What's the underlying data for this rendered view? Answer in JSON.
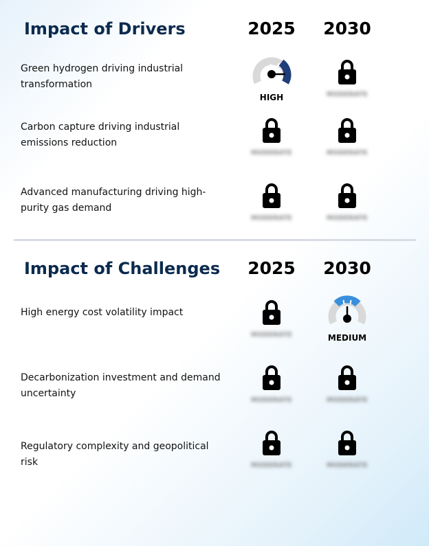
{
  "drivers": {
    "title": "Impact of Drivers",
    "year_a": "2025",
    "year_b": "2030",
    "rows": [
      {
        "label": "Green hydrogen driving industrial transformation",
        "y2025": {
          "kind": "gauge",
          "level": "HIGH",
          "color": "#1f3e7a"
        },
        "y2030": {
          "kind": "locked",
          "hidden_text": "MODERATE"
        }
      },
      {
        "label": "Carbon capture driving industrial emissions reduction",
        "y2025": {
          "kind": "locked",
          "hidden_text": "MODERATE"
        },
        "y2030": {
          "kind": "locked",
          "hidden_text": "MODERATE"
        }
      },
      {
        "label": "Advanced manufacturing driving high-purity gas demand",
        "y2025": {
          "kind": "locked",
          "hidden_text": "MODERATE"
        },
        "y2030": {
          "kind": "locked",
          "hidden_text": "MODERATE"
        }
      }
    ]
  },
  "challenges": {
    "title": "Impact of Challenges",
    "year_a": "2025",
    "year_b": "2030",
    "rows": [
      {
        "label": "High energy cost volatility impact",
        "y2025": {
          "kind": "locked",
          "hidden_text": "MODERATE"
        },
        "y2030": {
          "kind": "gauge",
          "level": "MEDIUM",
          "color": "#3a8fdc"
        }
      },
      {
        "label": "Decarbonization investment and demand uncertainty",
        "y2025": {
          "kind": "locked",
          "hidden_text": "MODERATE"
        },
        "y2030": {
          "kind": "locked",
          "hidden_text": "MODERATE"
        }
      },
      {
        "label": "Regulatory complexity and geopolitical risk",
        "y2025": {
          "kind": "locked",
          "hidden_text": "MODERATE"
        },
        "y2030": {
          "kind": "locked",
          "hidden_text": "MODERATE"
        }
      }
    ]
  }
}
